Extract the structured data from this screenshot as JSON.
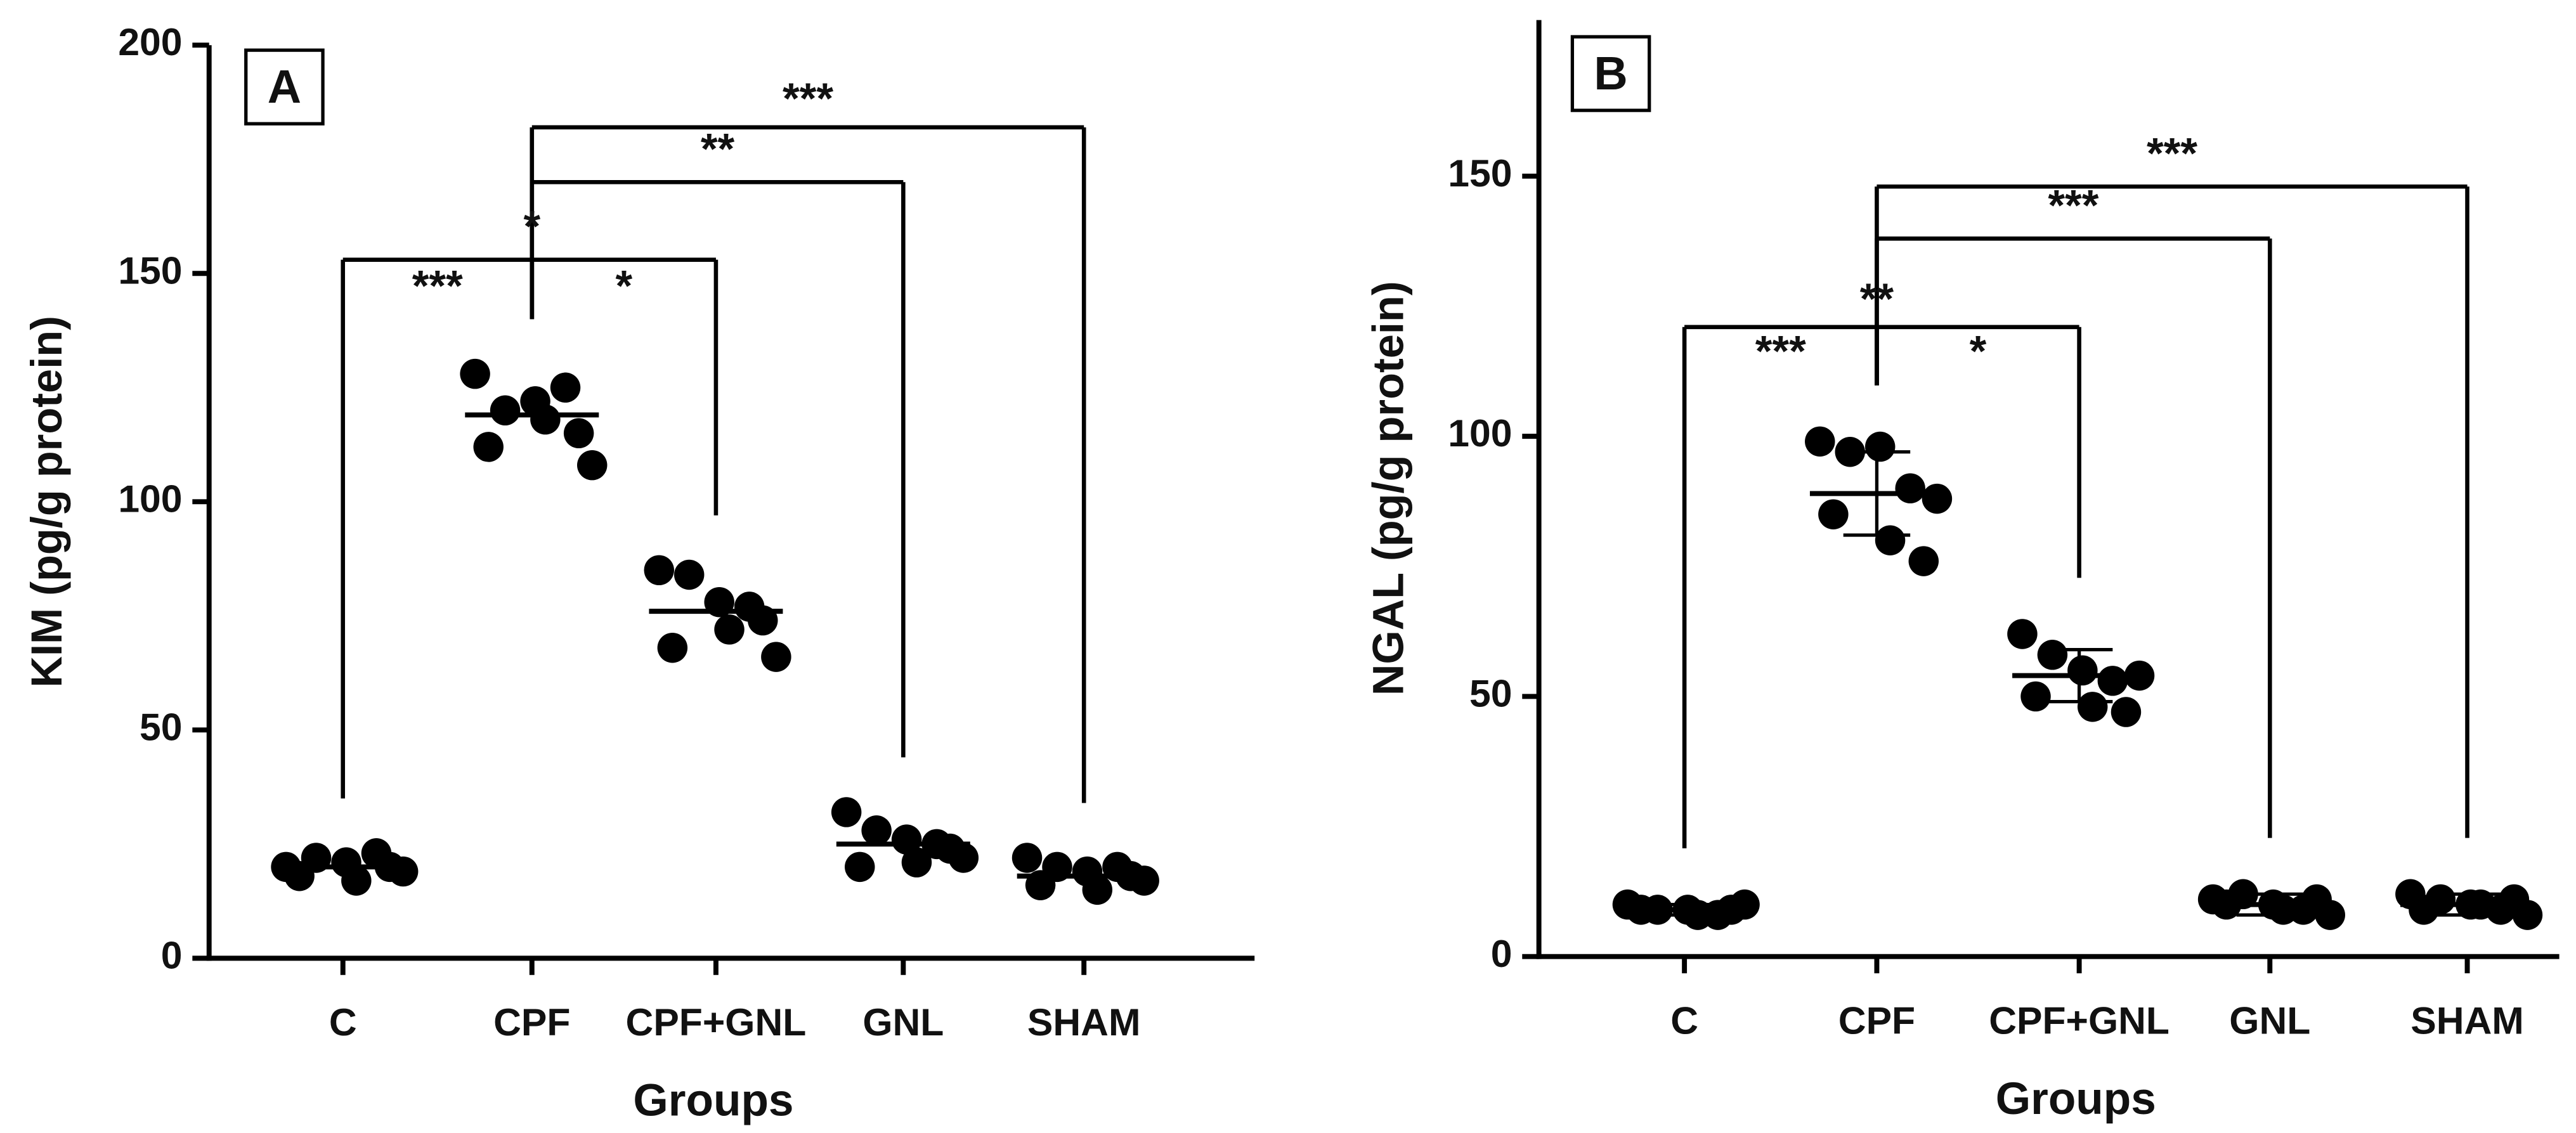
{
  "chart_data": [
    {
      "type": "dot",
      "label": "A",
      "ylabel": "KIM (pg/g protein)",
      "xlabel": "Groups",
      "categories": [
        "C",
        "CPF",
        "CPF+GNL",
        "GNL",
        "SHAM"
      ],
      "values": [
        [
          20,
          22,
          21,
          23,
          19,
          18,
          17,
          20
        ],
        [
          128,
          120,
          122,
          125,
          108,
          112,
          118,
          115
        ],
        [
          85,
          84,
          78,
          77,
          66,
          68,
          72,
          74
        ],
        [
          32,
          28,
          26,
          25,
          22,
          20,
          21,
          24
        ],
        [
          22,
          20,
          19,
          20,
          17,
          16,
          15,
          18
        ]
      ],
      "means": [
        20,
        119,
        76,
        25,
        18
      ],
      "ylim": [
        0,
        200
      ],
      "yticks": [
        0,
        50,
        100,
        150,
        200
      ],
      "color": "#000000",
      "brackets": [
        {
          "from": 0,
          "to": 1,
          "y": 153,
          "label": "***",
          "label_y": 148
        },
        {
          "from": 1,
          "to": 2,
          "y": 153,
          "label": "*",
          "label_y": 148
        },
        {
          "from": 1,
          "to": 3,
          "y": 170,
          "label": "**",
          "label_y": 178
        },
        {
          "from": 1,
          "to": 4,
          "y": 182,
          "label": "***",
          "label_y": 189
        }
      ],
      "annotations": [
        {
          "text": "*",
          "category": 1,
          "y": 161
        }
      ]
    },
    {
      "type": "dot",
      "label": "B",
      "ylabel": "NGAL (pg/g protein)",
      "xlabel": "Groups",
      "categories": [
        "C",
        "CPF",
        "CPF+GNL",
        "GNL",
        "SHAM"
      ],
      "values": [
        [
          10,
          9,
          9,
          8,
          10,
          9,
          8,
          9
        ],
        [
          99,
          97,
          98,
          90,
          88,
          85,
          80,
          76
        ],
        [
          62,
          58,
          55,
          53,
          54,
          50,
          48,
          47
        ],
        [
          11,
          12,
          10,
          9,
          8,
          10,
          9,
          11
        ],
        [
          12,
          11,
          10,
          9,
          8,
          9,
          10,
          11
        ]
      ],
      "means": [
        9,
        89,
        54,
        10,
        10
      ],
      "errors": [
        1,
        8,
        5,
        2,
        2
      ],
      "ylim": [
        0,
        180
      ],
      "yticks": [
        0,
        50,
        100,
        150
      ],
      "color": "#000000",
      "brackets": [
        {
          "from": 0,
          "to": 1,
          "y": 121,
          "label": "***",
          "label_y": 117
        },
        {
          "from": 1,
          "to": 2,
          "y": 121,
          "label": "*",
          "label_y": 117
        },
        {
          "from": 1,
          "to": 3,
          "y": 138,
          "label": "***",
          "label_y": 145
        },
        {
          "from": 1,
          "to": 4,
          "y": 148,
          "label": "***",
          "label_y": 155
        }
      ],
      "annotations": [
        {
          "text": "**",
          "category": 1,
          "y": 127
        }
      ]
    }
  ]
}
